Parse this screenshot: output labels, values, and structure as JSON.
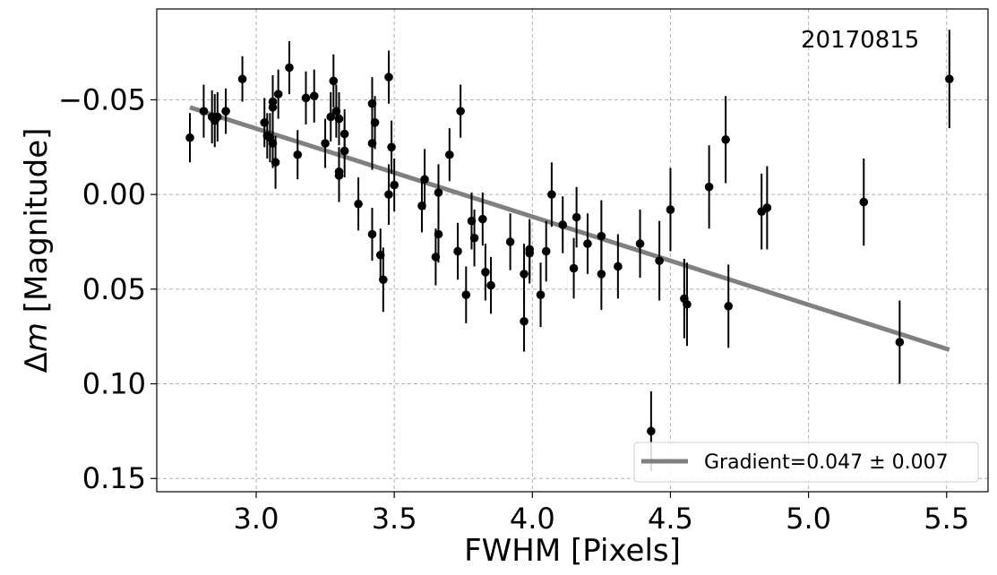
{
  "chart_data": {
    "type": "scatter",
    "xlabel": "FWHM [Pixels]",
    "ylabel_prefix": "Δ",
    "ylabel_var": "m",
    "ylabel_rest": " [Magnitude]",
    "annotation": "20170815",
    "xlim": [
      2.64,
      5.65
    ],
    "ylim": [
      0.157,
      -0.098
    ],
    "y_inverted": true,
    "grid": true,
    "xticks": [
      3.0,
      3.5,
      4.0,
      4.5,
      5.0,
      5.5
    ],
    "xtick_labels": [
      "3.0",
      "3.5",
      "4.0",
      "4.5",
      "5.0",
      "5.5"
    ],
    "yticks": [
      -0.05,
      0.0,
      0.05,
      0.1,
      0.15
    ],
    "ytick_labels": [
      "−0.05",
      "0.00",
      "0.05",
      "0.10",
      "0.15"
    ],
    "legend": {
      "position": "lower-right",
      "label": "Gradient=0.047 ± 0.007",
      "color": "#808080"
    },
    "fit_line": {
      "x": [
        2.76,
        5.51
      ],
      "y": [
        -0.046,
        0.082
      ],
      "color": "#808080"
    },
    "marker_color": "#000000",
    "points": [
      {
        "x": 2.76,
        "y": -0.03,
        "err": 0.013
      },
      {
        "x": 2.81,
        "y": -0.044,
        "err": 0.014
      },
      {
        "x": 2.84,
        "y": -0.041,
        "err": 0.014
      },
      {
        "x": 2.85,
        "y": -0.039,
        "err": 0.014
      },
      {
        "x": 2.86,
        "y": -0.041,
        "err": 0.013
      },
      {
        "x": 2.89,
        "y": -0.044,
        "err": 0.012
      },
      {
        "x": 2.95,
        "y": -0.061,
        "err": 0.012
      },
      {
        "x": 3.03,
        "y": -0.038,
        "err": 0.013
      },
      {
        "x": 3.04,
        "y": -0.031,
        "err": 0.012
      },
      {
        "x": 3.05,
        "y": -0.03,
        "err": 0.013
      },
      {
        "x": 3.06,
        "y": -0.046,
        "err": 0.014
      },
      {
        "x": 3.06,
        "y": -0.049,
        "err": 0.014
      },
      {
        "x": 3.06,
        "y": -0.027,
        "err": 0.013
      },
      {
        "x": 3.07,
        "y": -0.017,
        "err": 0.014
      },
      {
        "x": 3.08,
        "y": -0.053,
        "err": 0.013
      },
      {
        "x": 3.12,
        "y": -0.067,
        "err": 0.014
      },
      {
        "x": 3.15,
        "y": -0.021,
        "err": 0.013
      },
      {
        "x": 3.18,
        "y": -0.051,
        "err": 0.014
      },
      {
        "x": 3.21,
        "y": -0.052,
        "err": 0.014
      },
      {
        "x": 3.25,
        "y": -0.027,
        "err": 0.013
      },
      {
        "x": 3.27,
        "y": -0.041,
        "err": 0.013
      },
      {
        "x": 3.28,
        "y": -0.06,
        "err": 0.014
      },
      {
        "x": 3.29,
        "y": -0.044,
        "err": 0.014
      },
      {
        "x": 3.3,
        "y": -0.04,
        "err": 0.014
      },
      {
        "x": 3.3,
        "y": -0.012,
        "err": 0.013
      },
      {
        "x": 3.3,
        "y": -0.01,
        "err": 0.014
      },
      {
        "x": 3.32,
        "y": -0.023,
        "err": 0.014
      },
      {
        "x": 3.32,
        "y": -0.032,
        "err": 0.013
      },
      {
        "x": 3.37,
        "y": 0.005,
        "err": 0.014
      },
      {
        "x": 3.42,
        "y": -0.048,
        "err": 0.014
      },
      {
        "x": 3.42,
        "y": -0.027,
        "err": 0.014
      },
      {
        "x": 3.42,
        "y": 0.021,
        "err": 0.014
      },
      {
        "x": 3.43,
        "y": -0.038,
        "err": 0.014
      },
      {
        "x": 3.45,
        "y": 0.032,
        "err": 0.014
      },
      {
        "x": 3.46,
        "y": 0.045,
        "err": 0.017
      },
      {
        "x": 3.48,
        "y": -0.062,
        "err": 0.014
      },
      {
        "x": 3.48,
        "y": 0.0,
        "err": 0.016
      },
      {
        "x": 3.49,
        "y": -0.025,
        "err": 0.014
      },
      {
        "x": 3.5,
        "y": -0.005,
        "err": 0.014
      },
      {
        "x": 3.6,
        "y": 0.006,
        "err": 0.014
      },
      {
        "x": 3.61,
        "y": -0.008,
        "err": 0.016
      },
      {
        "x": 3.65,
        "y": 0.033,
        "err": 0.015
      },
      {
        "x": 3.66,
        "y": 0.021,
        "err": 0.015
      },
      {
        "x": 3.66,
        "y": -0.001,
        "err": 0.015
      },
      {
        "x": 3.7,
        "y": -0.021,
        "err": 0.014
      },
      {
        "x": 3.73,
        "y": 0.03,
        "err": 0.015
      },
      {
        "x": 3.74,
        "y": -0.044,
        "err": 0.014
      },
      {
        "x": 3.76,
        "y": 0.053,
        "err": 0.015
      },
      {
        "x": 3.78,
        "y": 0.014,
        "err": 0.015
      },
      {
        "x": 3.79,
        "y": 0.023,
        "err": 0.015
      },
      {
        "x": 3.82,
        "y": 0.013,
        "err": 0.014
      },
      {
        "x": 3.83,
        "y": 0.041,
        "err": 0.015
      },
      {
        "x": 3.85,
        "y": 0.048,
        "err": 0.015
      },
      {
        "x": 3.92,
        "y": 0.025,
        "err": 0.015
      },
      {
        "x": 3.97,
        "y": 0.067,
        "err": 0.016
      },
      {
        "x": 3.97,
        "y": 0.042,
        "err": 0.016
      },
      {
        "x": 3.99,
        "y": 0.031,
        "err": 0.016
      },
      {
        "x": 3.99,
        "y": 0.029,
        "err": 0.016
      },
      {
        "x": 4.03,
        "y": 0.053,
        "err": 0.017
      },
      {
        "x": 4.05,
        "y": 0.03,
        "err": 0.016
      },
      {
        "x": 4.07,
        "y": 0.0,
        "err": 0.017
      },
      {
        "x": 4.11,
        "y": 0.016,
        "err": 0.015
      },
      {
        "x": 4.15,
        "y": 0.039,
        "err": 0.016
      },
      {
        "x": 4.16,
        "y": 0.012,
        "err": 0.016
      },
      {
        "x": 4.2,
        "y": 0.026,
        "err": 0.016
      },
      {
        "x": 4.25,
        "y": 0.042,
        "err": 0.019
      },
      {
        "x": 4.25,
        "y": 0.022,
        "err": 0.019
      },
      {
        "x": 4.31,
        "y": 0.038,
        "err": 0.017
      },
      {
        "x": 4.39,
        "y": 0.026,
        "err": 0.018
      },
      {
        "x": 4.43,
        "y": 0.125,
        "err": 0.021
      },
      {
        "x": 4.46,
        "y": 0.035,
        "err": 0.021
      },
      {
        "x": 4.5,
        "y": 0.008,
        "err": 0.022
      },
      {
        "x": 4.55,
        "y": 0.055,
        "err": 0.021
      },
      {
        "x": 4.56,
        "y": 0.058,
        "err": 0.022
      },
      {
        "x": 4.64,
        "y": -0.004,
        "err": 0.022
      },
      {
        "x": 4.7,
        "y": -0.029,
        "err": 0.023
      },
      {
        "x": 4.71,
        "y": 0.059,
        "err": 0.022
      },
      {
        "x": 4.83,
        "y": 0.009,
        "err": 0.02
      },
      {
        "x": 4.85,
        "y": 0.007,
        "err": 0.022
      },
      {
        "x": 5.2,
        "y": 0.004,
        "err": 0.023
      },
      {
        "x": 5.33,
        "y": 0.078,
        "err": 0.022
      },
      {
        "x": 5.51,
        "y": -0.061,
        "err": 0.026
      }
    ]
  }
}
